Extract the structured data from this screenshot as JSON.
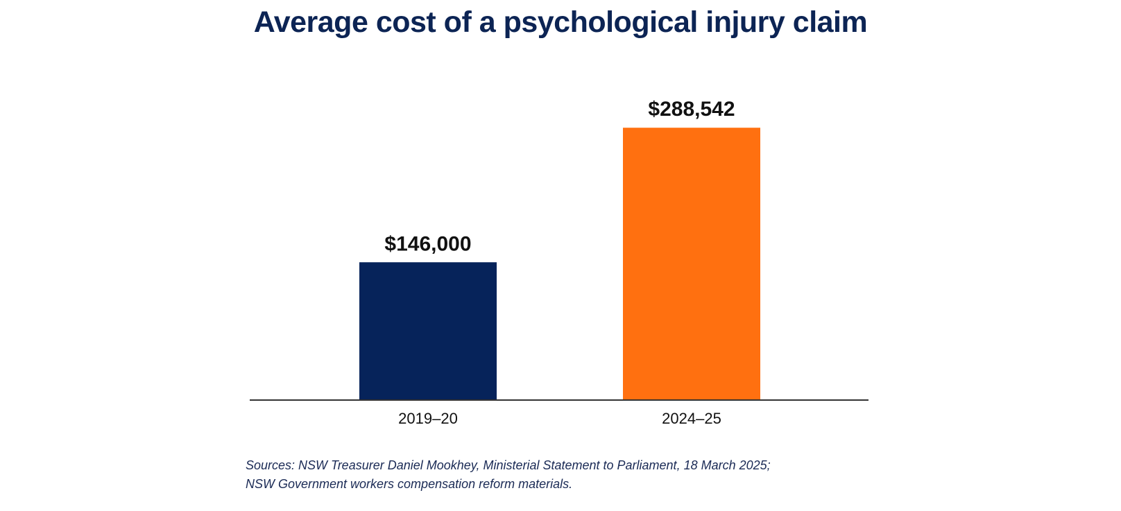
{
  "chart_data": {
    "type": "bar",
    "title": "Average cost of a psychological injury claim",
    "categories": [
      "2019–20",
      "2024–25"
    ],
    "values": [
      146000,
      288542
    ],
    "data_labels": [
      "$146,000",
      "$288,542"
    ],
    "colors": [
      "#06235a",
      "#ff7010"
    ],
    "ylim": [
      0,
      310000
    ],
    "grid": false,
    "legend": "none",
    "xlabel": "",
    "ylabel": ""
  },
  "sources": {
    "line1": "Sources: NSW Treasurer Daniel Mookhey, Ministerial Statement to Parliament, 18 March 2025;",
    "line2": "NSW Government workers compensation reform materials."
  },
  "colors": {
    "title": "#0c2454",
    "axis": "#333333",
    "text": "#111111"
  }
}
